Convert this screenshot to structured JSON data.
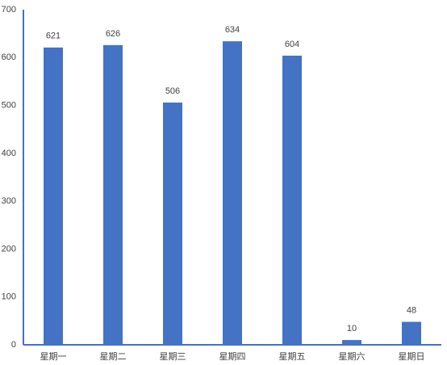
{
  "chart_data": {
    "type": "bar",
    "categories": [
      "星期一",
      "星期二",
      "星期三",
      "星期四",
      "星期五",
      "星期六",
      "星期日"
    ],
    "values": [
      621,
      626,
      506,
      634,
      604,
      10,
      48
    ],
    "color": "#4472c4",
    "ylim": [
      0,
      700
    ],
    "yticks": [
      0,
      100,
      200,
      300,
      400,
      500,
      600,
      700
    ],
    "grid": false
  }
}
